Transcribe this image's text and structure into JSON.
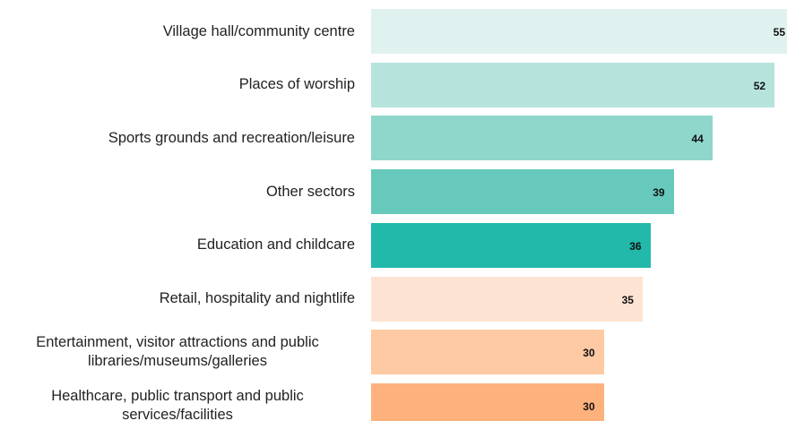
{
  "chart_data": {
    "type": "bar",
    "orientation": "horizontal",
    "categories": [
      "Village hall/community centre",
      "Places of worship",
      "Sports grounds and recreation/leisure",
      "Other sectors",
      "Education and childcare",
      "Retail, hospitality and nightlife",
      "Entertainment, visitor attractions and public libraries/museums/galleries",
      "Healthcare, public transport and public services/facilities"
    ],
    "values": [
      55,
      52,
      44,
      39,
      36,
      35,
      30,
      30
    ],
    "colors": [
      "#dff2ef",
      "#b6e4dd",
      "#8fd6cb",
      "#66c9bb",
      "#22b9aa",
      "#fde4d2",
      "#fdcaa3",
      "#fdb27e"
    ]
  }
}
